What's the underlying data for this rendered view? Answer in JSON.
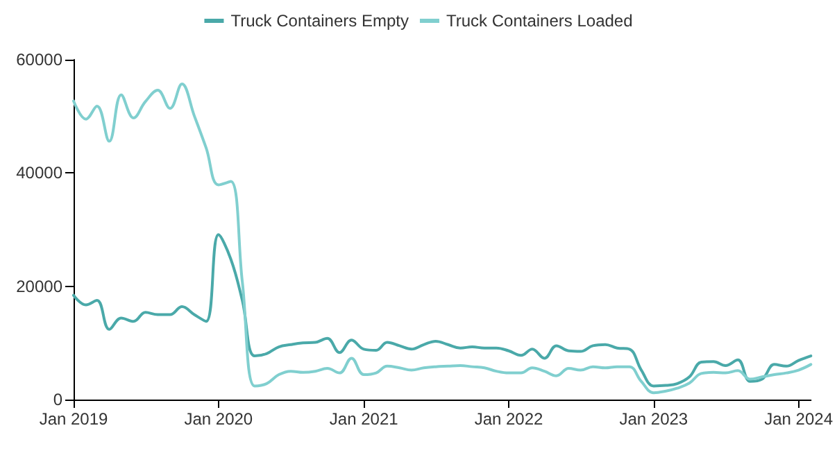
{
  "chart_data": {
    "type": "line",
    "x": [
      "2019-01",
      "2019-02",
      "2019-03",
      "2019-04",
      "2019-05",
      "2019-06",
      "2019-07",
      "2019-08",
      "2019-09",
      "2019-10",
      "2019-11",
      "2019-12",
      "2020-01",
      "2020-02",
      "2020-03",
      "2020-04",
      "2020-05",
      "2020-06",
      "2020-07",
      "2020-08",
      "2020-09",
      "2020-10",
      "2020-11",
      "2020-12",
      "2021-01",
      "2021-02",
      "2021-03",
      "2021-04",
      "2021-05",
      "2021-06",
      "2021-07",
      "2021-08",
      "2021-09",
      "2021-10",
      "2021-11",
      "2021-12",
      "2022-01",
      "2022-02",
      "2022-03",
      "2022-04",
      "2022-05",
      "2022-06",
      "2022-07",
      "2022-08",
      "2022-09",
      "2022-10",
      "2022-11",
      "2022-12",
      "2023-01",
      "2023-02",
      "2023-03",
      "2023-04",
      "2023-05",
      "2023-06",
      "2023-07",
      "2023-08",
      "2023-09",
      "2023-10",
      "2023-11",
      "2023-12",
      "2024-01",
      "2024-02"
    ],
    "series": [
      {
        "name": "Truck Containers Empty",
        "color": "#4aa9a9",
        "values": [
          18400,
          16700,
          17500,
          12400,
          14400,
          13800,
          15400,
          15000,
          15000,
          16400,
          15000,
          13800,
          29100,
          24800,
          17500,
          7700,
          8100,
          9300,
          9700,
          10000,
          10100,
          10800,
          8300,
          10500,
          8900,
          8700,
          10100,
          9500,
          8900,
          9700,
          10300,
          9700,
          9100,
          9300,
          9100,
          9100,
          8600,
          7800,
          8900,
          7300,
          9500,
          8600,
          8500,
          9500,
          9700,
          9100,
          8900,
          5200,
          2400,
          2500,
          2800,
          4000,
          6600,
          6700,
          6000,
          7000,
          3200,
          3600,
          6200,
          5900,
          6900,
          7700
        ]
      },
      {
        "name": "Truck Containers Loaded",
        "color": "#80cfcf",
        "values": [
          52700,
          49500,
          51800,
          45600,
          53800,
          49700,
          52600,
          54600,
          51400,
          55700,
          50100,
          44400,
          37900,
          38500,
          20800,
          2400,
          2800,
          4400,
          5000,
          4800,
          5000,
          5500,
          4700,
          7300,
          4400,
          4700,
          5900,
          5600,
          5200,
          5600,
          5800,
          5900,
          6000,
          5800,
          5600,
          5000,
          4700,
          4700,
          5600,
          5000,
          4200,
          5500,
          5200,
          5800,
          5600,
          5800,
          5800,
          3200,
          1200,
          1500,
          2000,
          2900,
          4600,
          4800,
          4700,
          5100,
          3600,
          4000,
          4400,
          4700,
          5200,
          6200
        ]
      }
    ],
    "xlim": [
      "2019-01",
      "2024-02"
    ],
    "xticks": [
      {
        "value": "2019-01",
        "label": "Jan 2019"
      },
      {
        "value": "2020-01",
        "label": "Jan 2020"
      },
      {
        "value": "2021-01",
        "label": "Jan 2021"
      },
      {
        "value": "2022-01",
        "label": "Jan 2022"
      },
      {
        "value": "2023-01",
        "label": "Jan 2023"
      },
      {
        "value": "2024-01",
        "label": "Jan 2024"
      }
    ],
    "ylim": [
      0,
      60000
    ],
    "yticks": [
      0,
      20000,
      40000,
      60000
    ],
    "legend": "top",
    "grid": false,
    "marker": "none",
    "line_style": "solid"
  }
}
